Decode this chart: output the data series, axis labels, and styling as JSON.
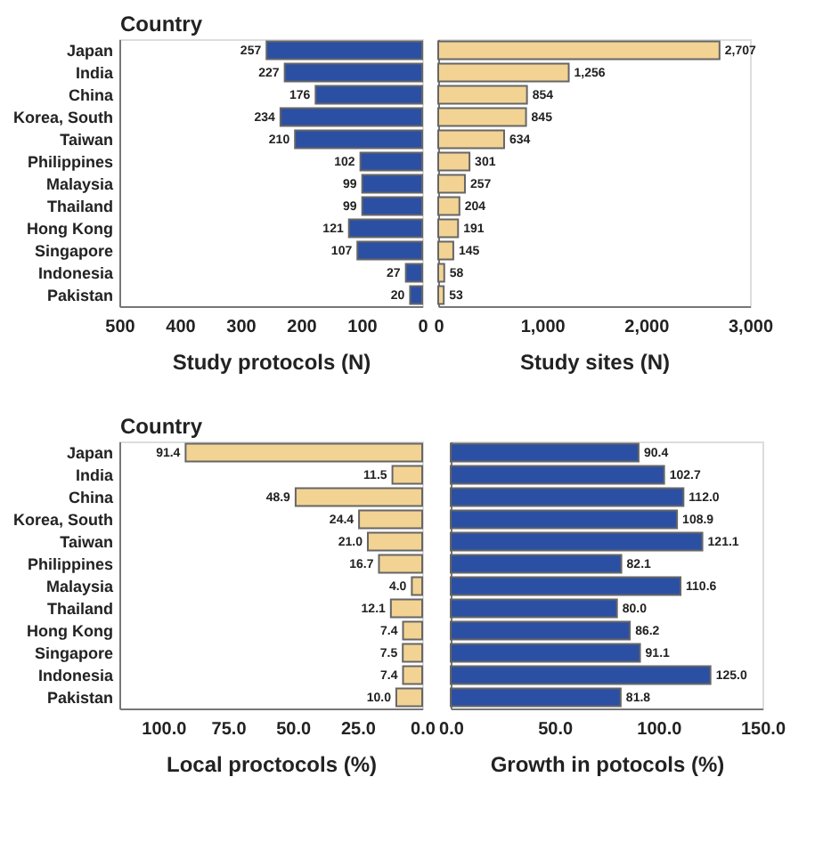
{
  "chart_data": [
    {
      "type": "bar",
      "orientation": "horizontal",
      "ylabel": "Country",
      "xlabel": "Study protocols (N)",
      "categories": [
        "Japan",
        "India",
        "China",
        "Korea, South",
        "Taiwan",
        "Philippines",
        "Malaysia",
        "Thailand",
        "Hong Kong",
        "Singapore",
        "Indonesia",
        "Pakistan"
      ],
      "values": [
        257,
        227,
        176,
        234,
        210,
        102,
        99,
        99,
        121,
        107,
        27,
        20
      ],
      "color": "#2b4fa3",
      "value_labels": [
        "257",
        "227",
        "176",
        "234",
        "210",
        "102",
        "99",
        "99",
        "121",
        "107",
        "27",
        "20"
      ],
      "xlim": [
        500,
        0
      ],
      "xticks": [
        500,
        400,
        300,
        200,
        100,
        0
      ]
    },
    {
      "type": "bar",
      "orientation": "horizontal",
      "xlabel": "Study sites (N)",
      "categories": [
        null,
        null,
        null,
        null,
        null,
        null,
        null,
        null,
        null,
        null,
        null,
        null
      ],
      "values": [
        2707,
        1256,
        854,
        845,
        634,
        301,
        257,
        204,
        191,
        145,
        58,
        53
      ],
      "color": "#f2d394",
      "value_labels": [
        "2,707",
        "1,256",
        "854",
        "845",
        "634",
        "301",
        "257",
        "204",
        "191",
        "145",
        "58",
        "53"
      ],
      "xlim": [
        0,
        3000
      ],
      "xticks": [
        0,
        {
          "value": 1000,
          "label": "1,000"
        },
        {
          "value": 2000,
          "label": "2,000"
        },
        {
          "value": 3000,
          "label": "3,000"
        }
      ]
    },
    {
      "type": "bar",
      "orientation": "horizontal",
      "ylabel": "Country",
      "xlabel": "Local proctocols (%)",
      "categories": [
        "Japan",
        "India",
        "China",
        "Korea, South",
        "Taiwan",
        "Philippines",
        "Malaysia",
        "Thailand",
        "Hong Kong",
        "Singapore",
        "Indonesia",
        "Pakistan"
      ],
      "values": [
        91.4,
        11.5,
        48.9,
        24.4,
        21.0,
        16.7,
        4.0,
        12.1,
        7.4,
        7.5,
        7.4,
        10.0
      ],
      "color": "#f2d394",
      "value_labels": [
        "91.4",
        "11.5",
        "48.9",
        "24.4",
        "21.0",
        "16.7",
        "4.0",
        "12.1",
        "7.4",
        "7.5",
        "7.4",
        "10.0"
      ],
      "xlim": [
        117,
        0
      ],
      "xticks": [
        {
          "value": 100,
          "label": "100.0"
        },
        {
          "value": 75,
          "label": "75.0"
        },
        {
          "value": 50,
          "label": "50.0"
        },
        {
          "value": 25,
          "label": "25.0"
        },
        {
          "value": 0,
          "label": "0.0"
        }
      ]
    },
    {
      "type": "bar",
      "orientation": "horizontal",
      "xlabel": "Growth in potocols (%)",
      "categories": [
        null,
        null,
        null,
        null,
        null,
        null,
        null,
        null,
        null,
        null,
        null,
        null
      ],
      "values": [
        90.4,
        102.7,
        112.0,
        108.9,
        121.1,
        82.1,
        110.6,
        80.0,
        86.2,
        91.1,
        125.0,
        81.8
      ],
      "color": "#2b4fa3",
      "value_labels": [
        "90.4",
        "102.7",
        "112.0",
        "108.9",
        "121.1",
        "82.1",
        "110.6",
        "80.0",
        "86.2",
        "91.1",
        "125.0",
        "81.8"
      ],
      "xlim": [
        0,
        150
      ],
      "xticks": [
        {
          "value": 0,
          "label": "0.0"
        },
        {
          "value": 50,
          "label": "50.0"
        },
        {
          "value": 100,
          "label": "100.0"
        },
        {
          "value": 150,
          "label": "150.0"
        }
      ]
    }
  ]
}
